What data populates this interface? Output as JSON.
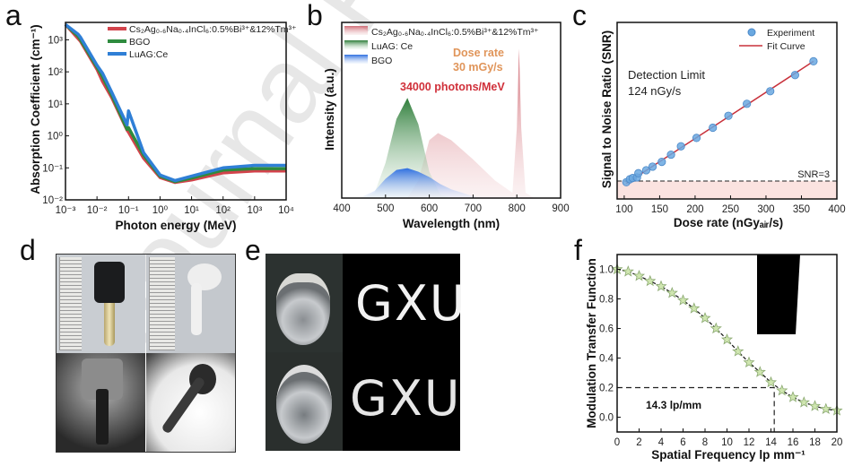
{
  "watermark": "Journal Pre-proof",
  "panels": {
    "a": "a",
    "b": "b",
    "c": "c",
    "d": "d",
    "e": "e",
    "f": "f"
  },
  "colors": {
    "red": "#d2434b",
    "green": "#2e8b3e",
    "blue": "#2f7fd6",
    "fit": "#c8303a",
    "point": "#6aa8e0",
    "snr_band": "#fbe3e0",
    "star": "#cfe6b0"
  },
  "chart_data": [
    {
      "panel": "a",
      "type": "line",
      "xscale": "log",
      "yscale": "log",
      "xlabel": "Photon energy (MeV)",
      "ylabel": "Absorption Coefficient (cm⁻¹)",
      "xlim": [
        0.001,
        10000
      ],
      "ylim": [
        0.01,
        3500
      ],
      "xticks": [
        "10⁻³",
        "10⁻²",
        "10⁻¹",
        "10⁰",
        "10¹",
        "10²",
        "10³",
        "10⁴"
      ],
      "yticks": [
        "10⁻²",
        "10⁻¹",
        "10⁰",
        "10¹",
        "10²",
        "10³"
      ],
      "legend": "top-right",
      "x": [
        0.001,
        0.0025,
        0.003,
        0.01,
        0.015,
        0.03,
        0.09,
        0.1,
        0.3,
        1,
        3,
        10,
        100,
        1000,
        10000
      ],
      "series": [
        {
          "name": "Cs₂Ag₀.₆Na₀.₄InCl₆:0.5%Bi³⁺&12%Tm³⁺",
          "color": "#d2434b",
          "values": [
            3000,
            1100,
            900,
            120,
            50,
            15,
            1.5,
            1.3,
            0.2,
            0.05,
            0.035,
            0.042,
            0.07,
            0.08,
            0.08
          ]
        },
        {
          "name": "BGO",
          "color": "#2e8b3e",
          "values": [
            3000,
            1300,
            1000,
            140,
            70,
            18,
            1.6,
            1.8,
            0.25,
            0.055,
            0.037,
            0.048,
            0.085,
            0.095,
            0.095
          ]
        },
        {
          "name": "LuAG:Ce",
          "color": "#2f7fd6",
          "values": [
            3000,
            1500,
            1200,
            160,
            90,
            22,
            2.2,
            6,
            0.3,
            0.06,
            0.04,
            0.055,
            0.1,
            0.12,
            0.12
          ]
        }
      ]
    },
    {
      "panel": "b",
      "type": "area",
      "xlabel": "Wavelength (nm)",
      "ylabel": "Intensity (a.u.)",
      "xlim": [
        400,
        900
      ],
      "ylim": [
        0,
        1
      ],
      "xticks": [
        "400",
        "500",
        "600",
        "700",
        "800",
        "900"
      ],
      "legend": "top-left",
      "annotations": {
        "dose_rate": "Dose rate",
        "dose_value": "30 mGy/s",
        "light_yield": "34000 photons/MeV"
      },
      "series": [
        {
          "name": "Cs₂Ag₀.₆Na₀.₄InCl₆:0.5%Bi³⁺&12%Tm³⁺",
          "color": "#d2434b",
          "x": [
            550,
            575,
            600,
            620,
            650,
            700,
            750,
            790,
            800,
            805,
            810,
            820,
            840
          ],
          "values": [
            0,
            0.1,
            0.33,
            0.37,
            0.33,
            0.22,
            0.1,
            0.03,
            0.4,
            0.85,
            0.4,
            0.03,
            0
          ]
        },
        {
          "name": "LuAG: Ce",
          "color": "#2e8b3e",
          "x": [
            450,
            475,
            500,
            525,
            550,
            575,
            600,
            625,
            650
          ],
          "values": [
            0,
            0.03,
            0.2,
            0.45,
            0.57,
            0.42,
            0.15,
            0.02,
            0
          ]
        },
        {
          "name": "BGO",
          "color": "#2f7fd6",
          "x": [
            440,
            475,
            500,
            525,
            550,
            575,
            600,
            625,
            650,
            700,
            725
          ],
          "values": [
            0,
            0.04,
            0.11,
            0.16,
            0.17,
            0.15,
            0.12,
            0.08,
            0.05,
            0.01,
            0
          ]
        }
      ]
    },
    {
      "panel": "c",
      "type": "scatter",
      "xlabel": "Dose rate (nGyₐᵢᵣ/s)",
      "ylabel": "Signal to Noise Ratio (SNR)",
      "xlim": [
        90,
        400
      ],
      "ylim": [
        0,
        29.5
      ],
      "xticks": [
        "100",
        "150",
        "200",
        "250",
        "300",
        "350",
        "400"
      ],
      "legend": "top-right",
      "threshold": {
        "label": "SNR=3",
        "value": 3
      },
      "annotation": {
        "title": "Detection Limit",
        "value": "124 nGy/s"
      },
      "series": [
        {
          "name": "Experiment",
          "x": [
            103,
            108,
            112,
            118,
            120,
            131,
            140,
            153,
            166,
            180,
            202,
            225,
            247,
            273,
            306,
            341,
            367
          ],
          "values": [
            2.8,
            3.3,
            3.5,
            3.6,
            4.3,
            4.8,
            5.4,
            6.2,
            7.4,
            8.8,
            10.2,
            11.9,
            13.9,
            15.9,
            18.0,
            20.7,
            23.0
          ]
        },
        {
          "name": "Fit Curve",
          "x": [
            103,
            367
          ],
          "values": [
            2.6,
            23.0
          ]
        }
      ]
    },
    {
      "panel": "f",
      "type": "line",
      "xlabel": "Spatial Frequency lp mm⁻¹",
      "ylabel": "Modulation Transfer Function",
      "xlim": [
        0,
        20
      ],
      "ylim": [
        -0.1,
        1.1
      ],
      "xticks": [
        "0",
        "2",
        "4",
        "6",
        "8",
        "10",
        "12",
        "14",
        "16",
        "18",
        "20"
      ],
      "yticks": [
        "0.0",
        "0.2",
        "0.4",
        "0.6",
        "0.8",
        "1.0"
      ],
      "marker": {
        "x": 14.3,
        "y": 0.2,
        "label": "14.3 lp/mm"
      },
      "x": [
        0,
        1,
        2,
        3,
        4,
        5,
        6,
        7,
        8,
        9,
        10,
        11,
        12,
        13,
        14,
        15,
        16,
        17,
        18,
        19,
        20
      ],
      "values": [
        1.0,
        0.985,
        0.955,
        0.92,
        0.885,
        0.84,
        0.79,
        0.735,
        0.67,
        0.6,
        0.525,
        0.445,
        0.37,
        0.305,
        0.235,
        0.18,
        0.135,
        0.1,
        0.075,
        0.055,
        0.045
      ]
    }
  ],
  "panel_e": {
    "text_top": "GXU",
    "text_bottom": "GXU"
  }
}
